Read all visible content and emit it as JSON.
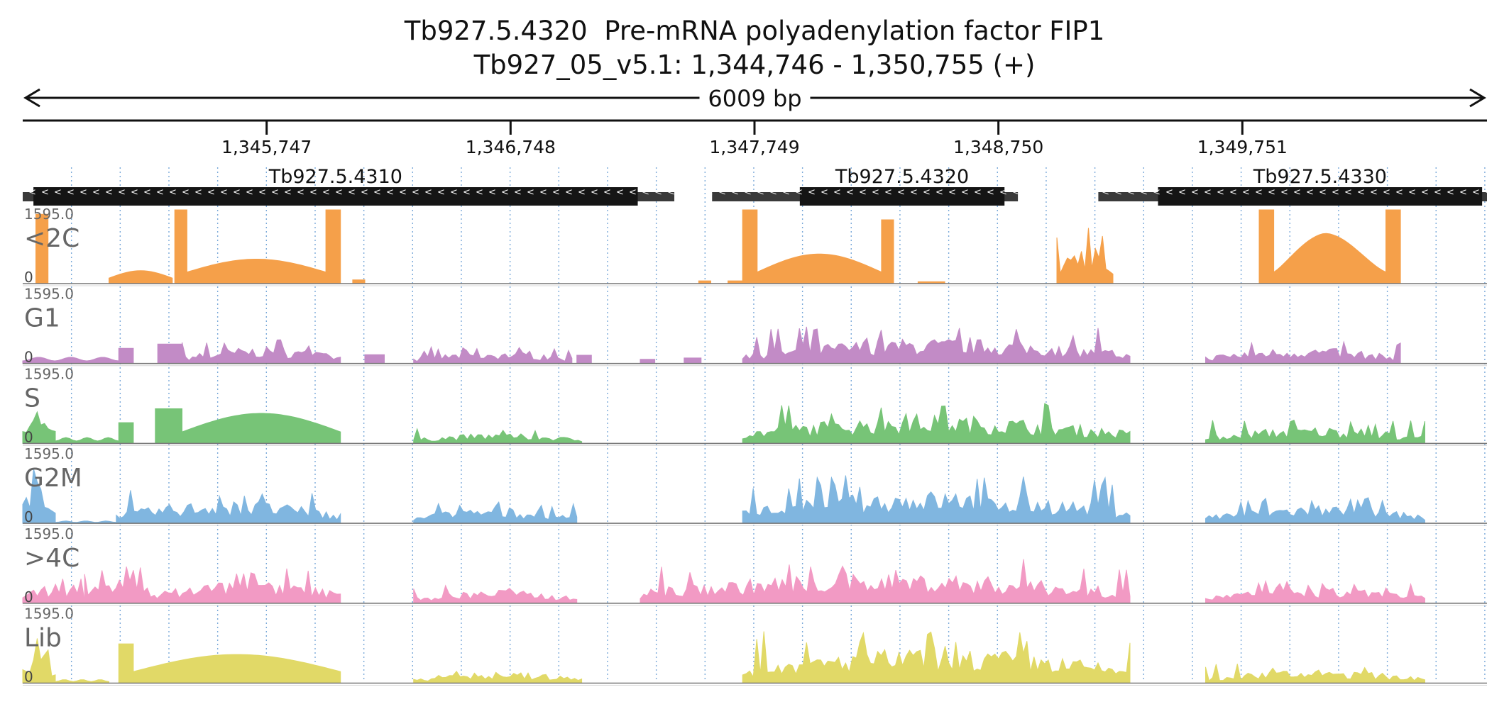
{
  "chart_data": {
    "type": "area",
    "title_lines": [
      "Tb927.5.4320  Pre-mRNA polyadenylation factor FIP1",
      "Tb927_05_v5.1: 1,344,746 - 1,350,755 (+)"
    ],
    "region": {
      "chromosome": "Tb927_05_v5.1",
      "start": 1344746,
      "end": 1350755,
      "strand": "+"
    },
    "span_label": "6009 bp",
    "axis_ticks": [
      1345747,
      1346748,
      1347749,
      1348750,
      1349751
    ],
    "axis_tick_labels": [
      "1,345,747",
      "1,346,748",
      "1,347,749",
      "1,348,750",
      "1,349,751"
    ],
    "grid": "dotted vertical lines",
    "genes": [
      {
        "name": "Tb927.5.4310",
        "strand": "-",
        "utr_start": 1344746,
        "utr_end": 1347420,
        "cds_start": 1344790,
        "cds_end": 1347270
      },
      {
        "name": "Tb927.5.4320",
        "strand": "-",
        "utr_start": 1347575,
        "utr_end": 1348830,
        "cds_start": 1347935,
        "cds_end": 1348775
      },
      {
        "name": "Tb927.5.4330",
        "strand": "-",
        "utr_start": 1349160,
        "utr_end": 1350755,
        "cds_start": 1349405,
        "cds_end": 1350735
      }
    ],
    "track_max": "1595.0",
    "track_min": "0",
    "ylim": [
      0,
      1595
    ],
    "series": [
      {
        "name": "<2C",
        "color": "#f5a04a",
        "segments": [
          {
            "start": 1344800,
            "end": 1344850,
            "profile": "flat",
            "level": 1500
          },
          {
            "start": 1345100,
            "end": 1345360,
            "profile": "dome",
            "level": 280,
            "edge": 120
          },
          {
            "start": 1345370,
            "end": 1345420,
            "profile": "flat",
            "level": 1595
          },
          {
            "start": 1345420,
            "end": 1345990,
            "profile": "dome",
            "level": 530,
            "edge": 250
          },
          {
            "start": 1345990,
            "end": 1346050,
            "profile": "flat",
            "level": 1595
          },
          {
            "start": 1346100,
            "end": 1346150,
            "profile": "flat",
            "level": 80
          },
          {
            "start": 1347520,
            "end": 1347570,
            "profile": "flat",
            "level": 60
          },
          {
            "start": 1347640,
            "end": 1347700,
            "profile": "flat",
            "level": 60
          },
          {
            "start": 1347700,
            "end": 1347760,
            "profile": "flat",
            "level": 1595
          },
          {
            "start": 1347760,
            "end": 1348270,
            "profile": "dome",
            "level": 640,
            "edge": 250
          },
          {
            "start": 1348270,
            "end": 1348320,
            "profile": "flat",
            "level": 1380
          },
          {
            "start": 1348420,
            "end": 1348530,
            "profile": "flat",
            "level": 40
          },
          {
            "start": 1348990,
            "end": 1349220,
            "profile": "jagged",
            "level": 800
          },
          {
            "start": 1349820,
            "end": 1349880,
            "profile": "flat",
            "level": 1595
          },
          {
            "start": 1349880,
            "end": 1350340,
            "profile": "peak",
            "level": 1100,
            "edge": 250
          },
          {
            "start": 1350340,
            "end": 1350400,
            "profile": "flat",
            "level": 1595
          }
        ]
      },
      {
        "name": "G1",
        "color": "#c28bc6",
        "segments": [
          {
            "start": 1344746,
            "end": 1345140,
            "profile": "low",
            "level": 160
          },
          {
            "start": 1345140,
            "end": 1345200,
            "profile": "flat",
            "level": 330
          },
          {
            "start": 1345300,
            "end": 1345400,
            "profile": "flat",
            "level": 420
          },
          {
            "start": 1345400,
            "end": 1346050,
            "profile": "jagged",
            "level": 330
          },
          {
            "start": 1346150,
            "end": 1346230,
            "profile": "flat",
            "level": 190
          },
          {
            "start": 1346350,
            "end": 1347000,
            "profile": "jagged",
            "level": 240
          },
          {
            "start": 1347020,
            "end": 1347080,
            "profile": "flat",
            "level": 180
          },
          {
            "start": 1347280,
            "end": 1347340,
            "profile": "flat",
            "level": 90
          },
          {
            "start": 1347460,
            "end": 1347530,
            "profile": "flat",
            "level": 120
          },
          {
            "start": 1347700,
            "end": 1349290,
            "profile": "jagged",
            "level": 500
          },
          {
            "start": 1349600,
            "end": 1350400,
            "profile": "jagged",
            "level": 320
          }
        ]
      },
      {
        "name": "S",
        "color": "#77c477",
        "segments": [
          {
            "start": 1344746,
            "end": 1344880,
            "profile": "jagged",
            "level": 700
          },
          {
            "start": 1344880,
            "end": 1345140,
            "profile": "low",
            "level": 150
          },
          {
            "start": 1345140,
            "end": 1345200,
            "profile": "flat",
            "level": 450
          },
          {
            "start": 1345290,
            "end": 1345400,
            "profile": "flat",
            "level": 750
          },
          {
            "start": 1345400,
            "end": 1346050,
            "profile": "dome",
            "level": 650,
            "edge": 250
          },
          {
            "start": 1346350,
            "end": 1347040,
            "profile": "jagged",
            "level": 200
          },
          {
            "start": 1347700,
            "end": 1349290,
            "profile": "jagged",
            "level": 560
          },
          {
            "start": 1349600,
            "end": 1350500,
            "profile": "jagged",
            "level": 330
          }
        ]
      },
      {
        "name": "G2M",
        "color": "#80b6e0",
        "segments": [
          {
            "start": 1344746,
            "end": 1344880,
            "profile": "jagged",
            "level": 1000
          },
          {
            "start": 1344880,
            "end": 1345130,
            "profile": "low",
            "level": 60
          },
          {
            "start": 1345130,
            "end": 1346050,
            "profile": "jagged",
            "level": 450
          },
          {
            "start": 1346350,
            "end": 1347020,
            "profile": "jagged",
            "level": 300
          },
          {
            "start": 1347700,
            "end": 1349290,
            "profile": "jagged",
            "level": 650
          },
          {
            "start": 1349600,
            "end": 1350500,
            "profile": "jagged",
            "level": 360
          }
        ]
      },
      {
        "name": ">4C",
        "color": "#f29ac4",
        "segments": [
          {
            "start": 1344746,
            "end": 1345000,
            "profile": "jagged",
            "level": 350
          },
          {
            "start": 1345000,
            "end": 1345300,
            "profile": "jagged",
            "level": 550
          },
          {
            "start": 1345300,
            "end": 1346050,
            "profile": "jagged",
            "level": 480
          },
          {
            "start": 1346350,
            "end": 1347020,
            "profile": "jagged",
            "level": 260
          },
          {
            "start": 1347280,
            "end": 1349290,
            "profile": "jagged",
            "level": 600
          },
          {
            "start": 1349600,
            "end": 1350500,
            "profile": "jagged",
            "level": 300
          }
        ]
      },
      {
        "name": "Lib",
        "color": "#e1d967",
        "segments": [
          {
            "start": 1344746,
            "end": 1344880,
            "profile": "jagged",
            "level": 650
          },
          {
            "start": 1344880,
            "end": 1345100,
            "profile": "low",
            "level": 90
          },
          {
            "start": 1345140,
            "end": 1345200,
            "profile": "flat",
            "level": 850
          },
          {
            "start": 1345200,
            "end": 1346050,
            "profile": "dome",
            "level": 620,
            "edge": 250
          },
          {
            "start": 1346350,
            "end": 1347040,
            "profile": "jagged",
            "level": 220
          },
          {
            "start": 1347700,
            "end": 1349290,
            "profile": "jagged",
            "level": 700
          },
          {
            "start": 1349600,
            "end": 1350500,
            "profile": "jagged",
            "level": 260
          }
        ]
      }
    ]
  }
}
